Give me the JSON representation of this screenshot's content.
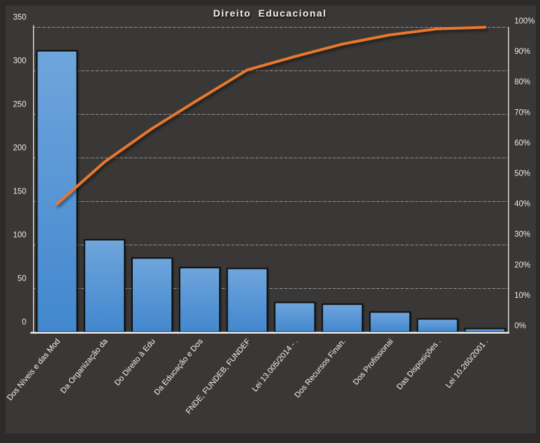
{
  "chart_data": {
    "type": "bar",
    "subtype": "pareto-combo-bar-line",
    "title": "Direito Educacional",
    "categories": [
      "Dos Níveis e das Mod",
      "Da Organização da",
      "Do Direito à Edu",
      "Da Educação e Dos",
      "FNDE, FUNDEB, FUNDEF",
      "Lei 13.005/2014 - .",
      "Dos Recursos Finan.",
      "Dos Profissionai",
      "Das Disposições .",
      "Lei 10.260/2001 ."
    ],
    "series": [
      {
        "name": "frequency-bars",
        "type": "bar",
        "values": [
          323,
          106,
          85,
          74,
          73,
          34,
          32,
          23,
          15,
          4
        ]
      },
      {
        "name": "cumulative-percent-line",
        "type": "line",
        "values": [
          42.0,
          55.8,
          66.8,
          76.5,
          86.0,
          90.4,
          94.5,
          97.5,
          99.5,
          100.0
        ]
      }
    ],
    "left_axis": {
      "min": 0,
      "max": 350,
      "step": 50,
      "tick_labels": [
        "0",
        "50",
        "100",
        "150",
        "200",
        "250",
        "300",
        "350"
      ]
    },
    "right_axis": {
      "min": 0,
      "max": 100,
      "step": 10,
      "tick_labels": [
        "0%",
        "10%",
        "20%",
        "30%",
        "40%",
        "50%",
        "60%",
        "70%",
        "80%",
        "90%",
        "100%"
      ]
    },
    "grid": "horizontal-dashed",
    "legend": "none",
    "colors": {
      "background": "#3a3836",
      "frame": "#2c2b29",
      "bar_top": "#6fa5dc",
      "bar_bottom": "#4287ce",
      "bar_border": "#0f0f0f",
      "line": "#e9772e",
      "gridline": "#c4c4c4",
      "axis_line": "#e9e9e7",
      "text": "#ececec"
    }
  }
}
